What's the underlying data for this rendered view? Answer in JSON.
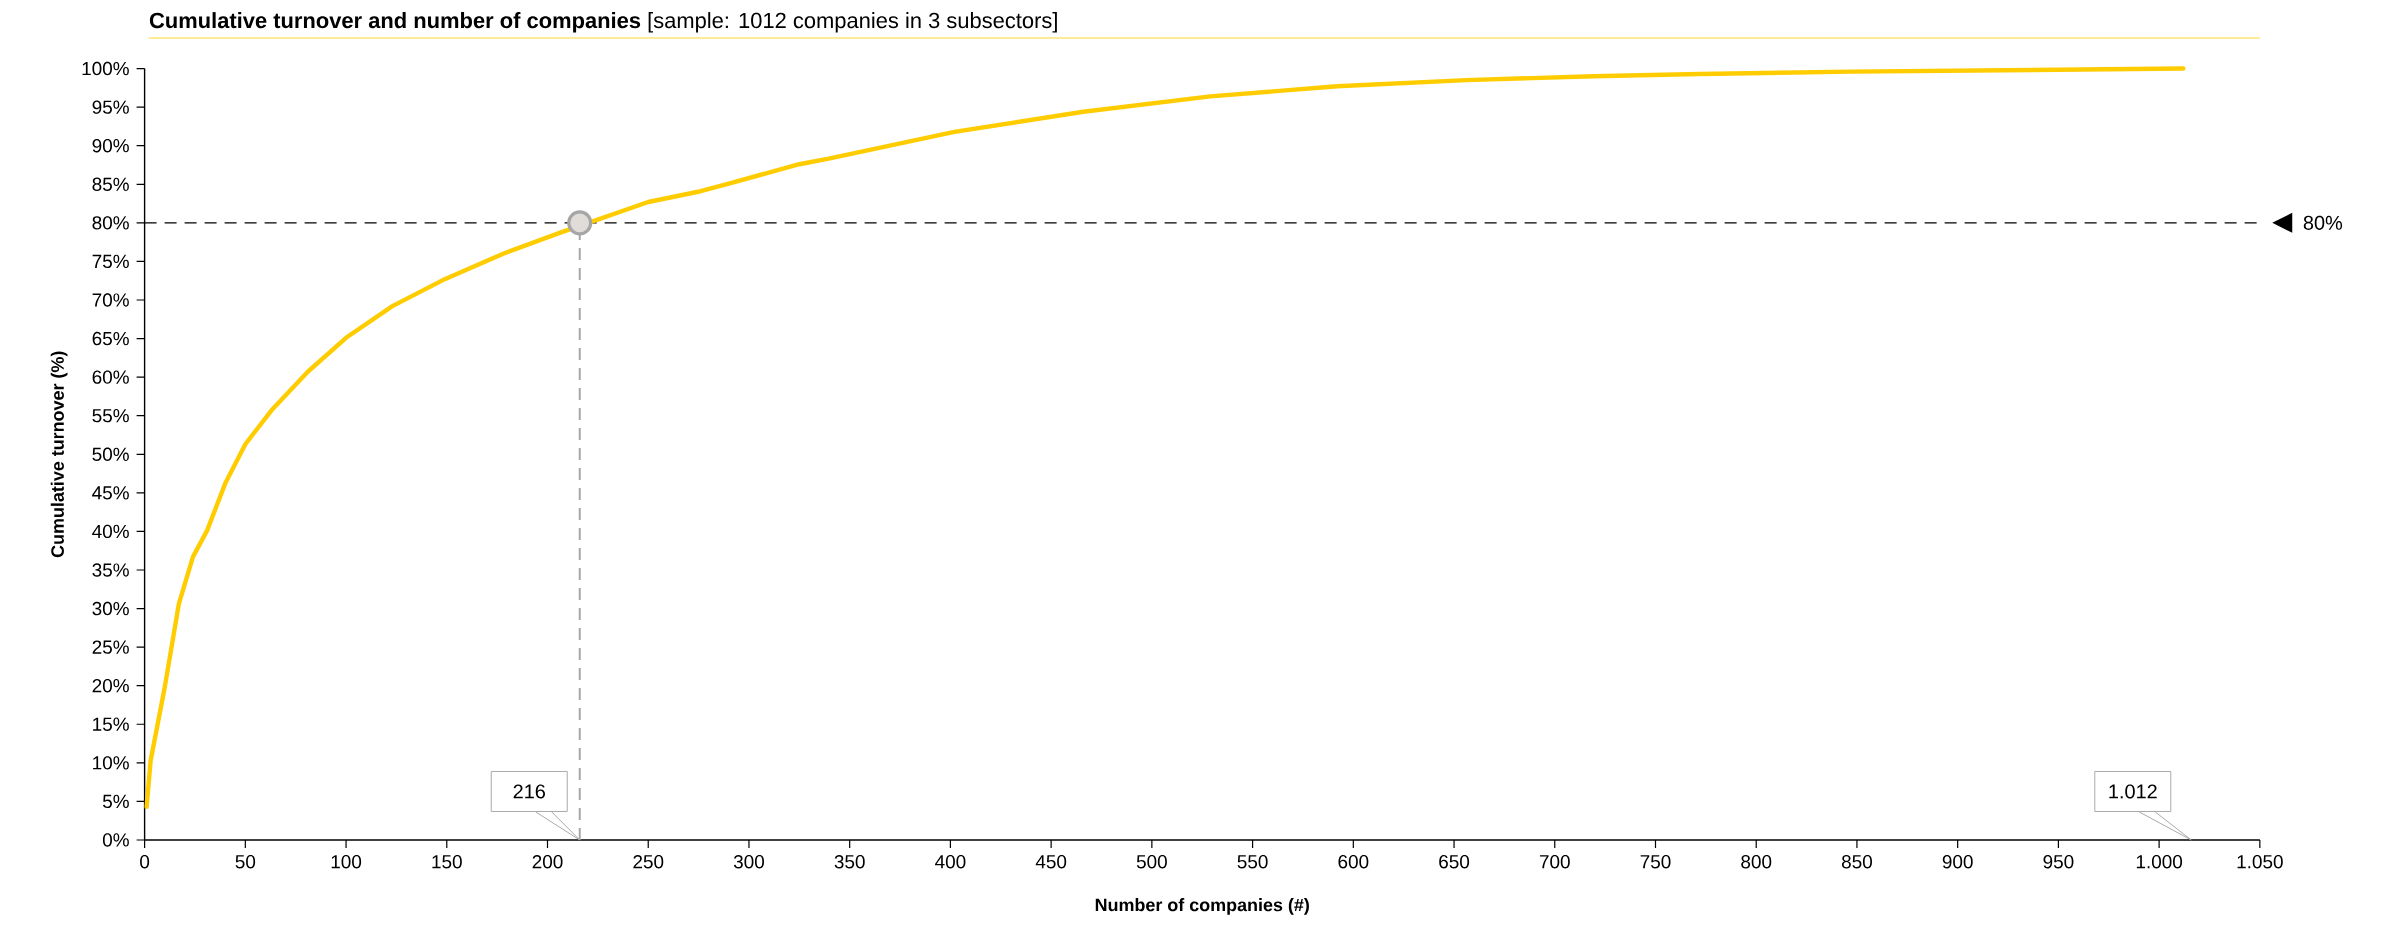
{
  "chart_data": {
    "type": "line",
    "title": "**Cumulative turnover and number of companies** [sample: 1012 companies in 3 subsectors]",
    "xlabel": "Number of companies (#)",
    "ylabel": "Cumulative turnover (%)",
    "xlim": [
      0,
      1050
    ],
    "ylim": [
      0,
      100
    ],
    "xticks": [
      0,
      50,
      100,
      150,
      200,
      250,
      300,
      350,
      400,
      450,
      500,
      550,
      600,
      650,
      700,
      750,
      800,
      850,
      900,
      950,
      {
        "value": 1000,
        "label": "1.000"
      },
      {
        "value": 1050,
        "label": "1.050"
      }
    ],
    "yticks": [
      {
        "value": 0,
        "label": "0%"
      },
      {
        "value": 5,
        "label": "5%"
      },
      {
        "value": 10,
        "label": "10%"
      },
      {
        "value": 15,
        "label": "15%"
      },
      {
        "value": 20,
        "label": "20%"
      },
      {
        "value": 25,
        "label": "25%"
      },
      {
        "value": 30,
        "label": "30%"
      },
      {
        "value": 35,
        "label": "35%"
      },
      {
        "value": 40,
        "label": "40%"
      },
      {
        "value": 45,
        "label": "45%"
      },
      {
        "value": 50,
        "label": "50%"
      },
      {
        "value": 55,
        "label": "55%"
      },
      {
        "value": 60,
        "label": "60%"
      },
      {
        "value": 65,
        "label": "65%"
      },
      {
        "value": 70,
        "label": "70%"
      },
      {
        "value": 75,
        "label": "75%"
      },
      {
        "value": 80,
        "label": "80%"
      },
      {
        "value": 85,
        "label": "85%"
      },
      {
        "value": 90,
        "label": "90%"
      },
      {
        "value": 95,
        "label": "95%"
      },
      {
        "value": 100,
        "label": "100%"
      }
    ],
    "series": [
      {
        "color": "#ffcc00",
        "x": [
          1,
          3,
          10,
          17,
          24,
          31,
          40,
          50,
          63,
          81,
          100,
          123,
          149,
          178,
          206,
          216,
          250,
          276,
          290,
          325,
          339,
          402,
          466,
          529,
          592,
          656,
          719,
          772,
          847,
          1012
        ],
        "values": [
          4.3,
          10.3,
          19.8,
          30.6,
          36.7,
          40.1,
          46.2,
          51.3,
          55.7,
          60.7,
          65.1,
          69.2,
          72.7,
          76,
          78.7,
          null,
          82.7,
          84.1,
          85.1,
          87.6,
          88.3,
          91.8,
          94.4,
          96.4,
          97.7,
          98.5,
          99.0,
          99.3,
          99.6,
          100
        ]
      },
      {
        "type": "scatter",
        "marker": "circle",
        "color": "#e0dcd7",
        "x": [
          216
        ],
        "values": [
          80
        ]
      }
    ],
    "ref_lines": [
      {
        "axis": "y",
        "value": 80,
        "label": "80%",
        "color": "#000000",
        "line_style": "dashed"
      },
      {
        "axis": "x",
        "value": 216,
        "label": "216",
        "color": "#a6a6a6",
        "line_style": "dashed"
      }
    ],
    "annotations": [
      "1.012"
    ]
  }
}
